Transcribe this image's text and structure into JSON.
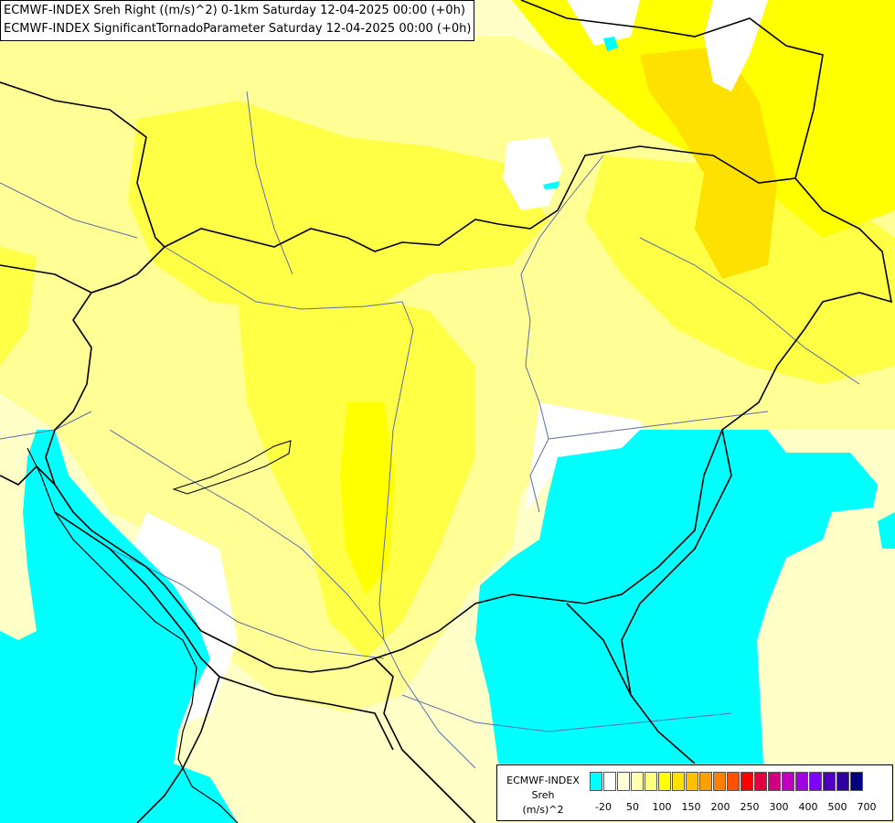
{
  "titles": {
    "line1": "ECMWF-INDEX Sreh Right ((m/s)^2) 0-1km Saturday 12-04-2025 00:00 (+0h)",
    "line2": "ECMWF-INDEX SignificantTornadoParameter Saturday 12-04-2025 00:00 (+0h)"
  },
  "legend": {
    "source": "ECMWF-INDEX",
    "parameter": "Sreh",
    "unit": "(m/s)^2",
    "swatch_colors": [
      "#00ffff",
      "#ffffff",
      "#ffffd8",
      "#ffffb0",
      "#ffff80",
      "#ffff00",
      "#ffe000",
      "#ffc000",
      "#ffa000",
      "#ff8000",
      "#ff5000",
      "#ff0000",
      "#e00040",
      "#d00080",
      "#c000c0",
      "#a000e0",
      "#8000ff",
      "#5000c0",
      "#3000a0",
      "#000080"
    ],
    "ticks": [
      "-20",
      "50",
      "100",
      "150",
      "200",
      "250",
      "300",
      "400",
      "500",
      "700"
    ]
  },
  "fill_colors": {
    "cyan": "#00ffff",
    "white": "#ffffff",
    "pale": "#ffffc8",
    "light": "#ffff96",
    "yellow": "#ffff46",
    "strong": "#ffff00",
    "gold": "#ffe100"
  }
}
